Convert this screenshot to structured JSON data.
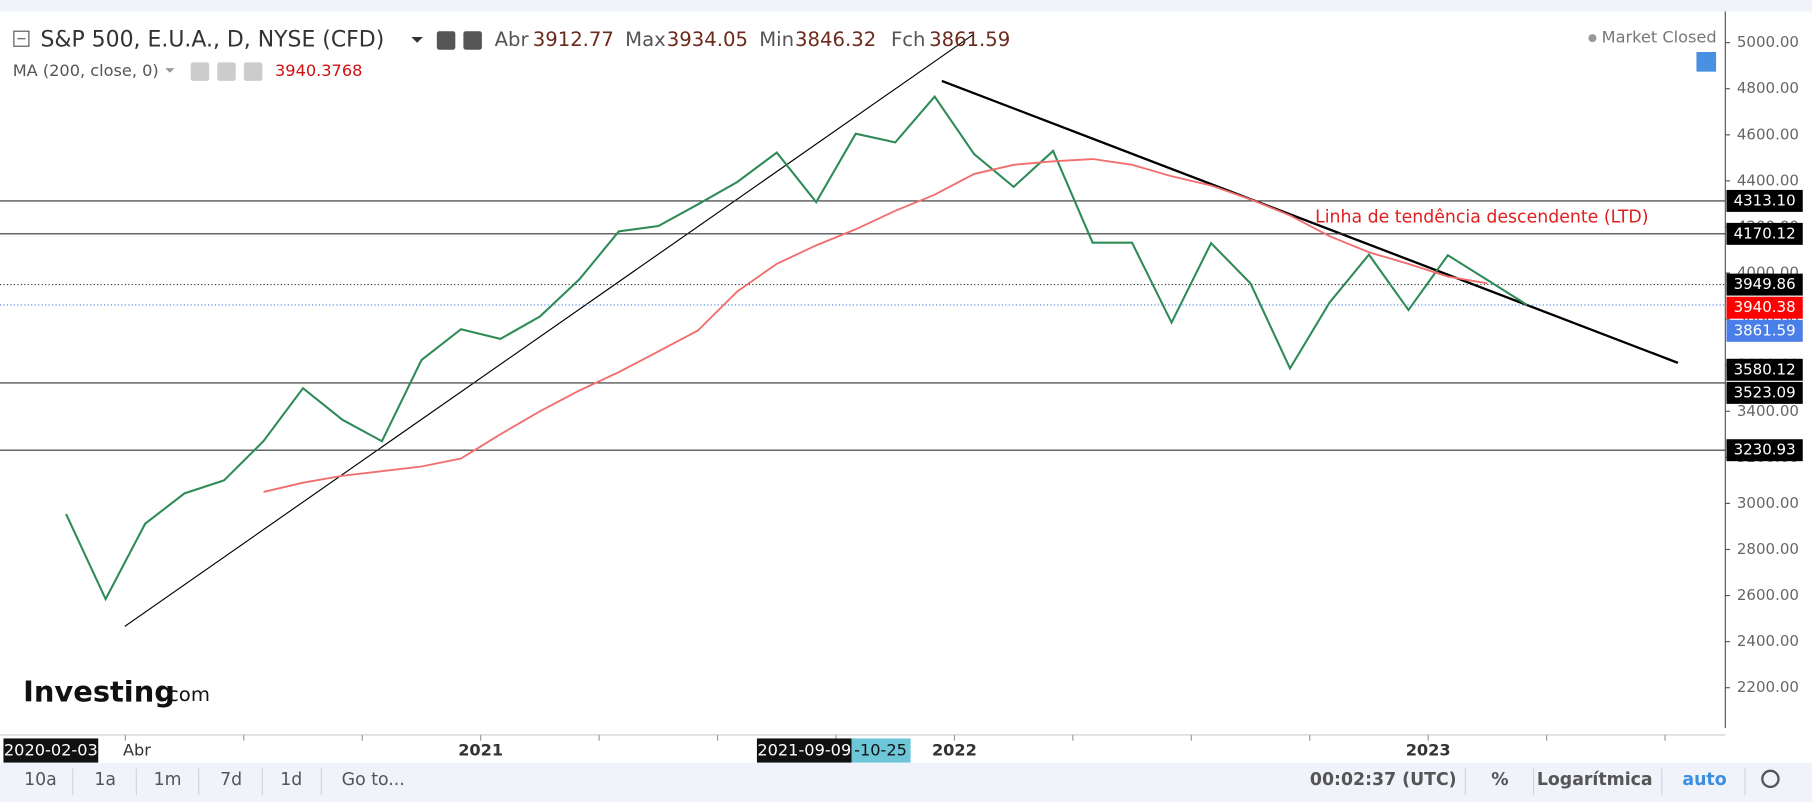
{
  "chart_data": {
    "type": "line",
    "title": "S&P 500, E.U.A., D, NYSE (CFD)",
    "ohlc": [
      {
        "label": "Abr",
        "value": 3912.77
      },
      {
        "label": "Max",
        "value": 3934.05
      },
      {
        "label": "Min",
        "value": 3846.32
      },
      {
        "label": "Fch",
        "value": 3861.59
      }
    ],
    "indicator_value": 3940.3768,
    "status": "Market Closed",
    "brand": [
      "Investing",
      ".com"
    ],
    "annotation": "Linha de tendência descendente (LTD)",
    "series": [
      {
        "name": "S&P 500, E.U.A., D, NYSE (CFD)",
        "color": "#2e8b57",
        "x": [
          "2020-02",
          "2020-03",
          "2020-04",
          "2020-05",
          "2020-06",
          "2020-07",
          "2020-08",
          "2020-09",
          "2020-10",
          "2020-11",
          "2020-12",
          "2021-01",
          "2021-02",
          "2021-03",
          "2021-04",
          "2021-05",
          "2021-06",
          "2021-07",
          "2021-08",
          "2021-09",
          "2021-10",
          "2021-11",
          "2021-12",
          "2022-01",
          "2022-02",
          "2022-03",
          "2022-04",
          "2022-05",
          "2022-06",
          "2022-07",
          "2022-08",
          "2022-09",
          "2022-10",
          "2022-11",
          "2022-12",
          "2023-01",
          "2023-02",
          "2023-03"
        ],
        "values": [
          2954,
          2585,
          2912,
          3044,
          3100,
          3271,
          3500,
          3363,
          3270,
          3622,
          3756,
          3714,
          3811,
          3973,
          4181,
          4204,
          4298,
          4395,
          4523,
          4308,
          4605,
          4567,
          4766,
          4516,
          4374,
          4530,
          4132,
          4132,
          3785,
          4130,
          3955,
          3586,
          3872,
          4080,
          3840,
          4077,
          3970,
          3862
        ]
      },
      {
        "name": "MA (200, close, 0)",
        "color": "#f26d6d",
        "x": [
          "2020-07",
          "2020-08",
          "2020-09",
          "2020-10",
          "2020-11",
          "2020-12",
          "2021-01",
          "2021-02",
          "2021-03",
          "2021-04",
          "2021-05",
          "2021-06",
          "2021-07",
          "2021-08",
          "2021-09",
          "2021-10",
          "2021-11",
          "2021-12",
          "2022-01",
          "2022-02",
          "2022-03",
          "2022-04",
          "2022-05",
          "2022-06",
          "2022-07",
          "2022-08",
          "2022-09",
          "2022-10",
          "2022-11",
          "2022-12",
          "2023-01",
          "2023-02"
        ],
        "values": [
          3050,
          3090,
          3120,
          3140,
          3160,
          3195,
          3300,
          3400,
          3490,
          3570,
          3660,
          3750,
          3920,
          4040,
          4120,
          4190,
          4270,
          4340,
          4430,
          4470,
          4485,
          4495,
          4470,
          4420,
          4380,
          4320,
          4250,
          4160,
          4090,
          4040,
          3985,
          3955
        ]
      }
    ],
    "xlim": [
      "2020-01",
      "2023-08"
    ],
    "xticks": [
      {
        "value": "2020-04",
        "label": "Abr"
      },
      {
        "value": "2020-07",
        "label": null
      },
      {
        "value": "2020-10",
        "label": null
      },
      {
        "value": "2021-01",
        "label": "2021"
      },
      {
        "value": "2021-04",
        "label": null
      },
      {
        "value": "2021-07",
        "label": null
      },
      {
        "value": "2021-10",
        "label": null
      },
      {
        "value": "2022-01",
        "label": "2022"
      },
      {
        "value": "2022-04",
        "label": null
      },
      {
        "value": "2022-07",
        "label": null
      },
      {
        "value": "2022-10",
        "label": null
      },
      {
        "value": "2023-01",
        "label": "2023"
      },
      {
        "value": "2023-04",
        "label": null
      },
      {
        "value": "2023-07",
        "label": null
      }
    ],
    "ylim": [
      2025,
      5135
    ],
    "yticks": [
      {
        "value": 2200,
        "label": "2200.00"
      },
      {
        "value": 2400,
        "label": "2400.00"
      },
      {
        "value": 2600,
        "label": "2600.00"
      },
      {
        "value": 2800,
        "label": "2800.00"
      },
      {
        "value": 3000,
        "label": "3000.00"
      },
      {
        "value": 3200,
        "label": "3200.00"
      },
      {
        "value": 3400,
        "label": "3400.00"
      },
      {
        "value": 3600,
        "label": "3600.00"
      },
      {
        "value": 3800,
        "label": "3800.00"
      },
      {
        "value": 4000,
        "label": "4000.00"
      },
      {
        "value": 4200,
        "label": "4200.00"
      },
      {
        "value": 4400,
        "label": "4400.00"
      },
      {
        "value": 4600,
        "label": "4600.00"
      },
      {
        "value": 4800,
        "label": "4800.00"
      },
      {
        "value": 5000,
        "label": "5000.00"
      }
    ],
    "levels": [
      {
        "value": 4313.1,
        "label": "4313.10",
        "color": "#000000",
        "line": "solid"
      },
      {
        "value": 4170.12,
        "label": "4170.12",
        "color": "#000000",
        "line": "solid"
      },
      {
        "value": 3949.86,
        "label": "3949.86",
        "color": "#000000",
        "line": "dotted"
      },
      {
        "value": 3940.38,
        "label": "3940.38",
        "color": "#ff0000",
        "line": "none"
      },
      {
        "value": 3861.59,
        "label": "3861.59",
        "color": "#4a7ee8",
        "line": "dotted"
      },
      {
        "value": 3580.12,
        "label": "3580.12",
        "color": "#000000",
        "line": "none"
      },
      {
        "value": 3523.09,
        "label": "3523.09",
        "color": "#000000",
        "line": "solid"
      },
      {
        "value": 3230.93,
        "label": "3230.93",
        "color": "#000000",
        "line": "solid"
      }
    ],
    "crosshair_labels": [
      "2020-02-03",
      "2021-09-09",
      "-10-25"
    ]
  },
  "toolbar": [
    "10a",
    "1a",
    "1m",
    "7d",
    "1d",
    "Go to...",
    "00:02:37 (UTC)",
    "%",
    "Logarítmica",
    "auto"
  ]
}
